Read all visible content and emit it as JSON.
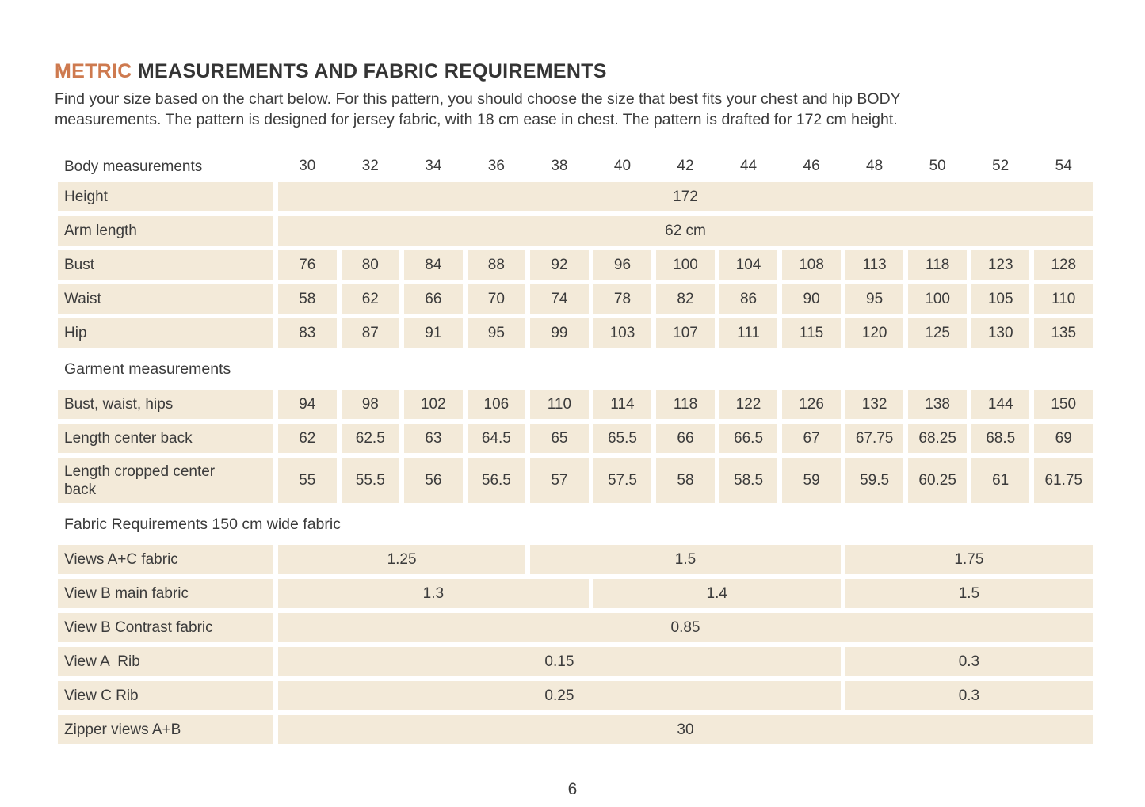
{
  "page": {
    "title_highlight": "METRIC",
    "title_rest": " MEASUREMENTS AND FABRIC REQUIREMENTS",
    "intro_line1": "Find your size based on the chart below. For this pattern, you should choose the size that best fits your chest and hip BODY",
    "intro_line2": "measurements. The pattern is designed for jersey fabric, with 18 cm ease in chest. The pattern is drafted for 172 cm height.",
    "page_number": "6"
  },
  "colors": {
    "accent": "#ce7a4f",
    "cell_background": "#f3ead9",
    "text": "#3b3b3b",
    "page_background": "#ffffff"
  },
  "table": {
    "rows": [
      {
        "type": "header",
        "label": "Body measurements",
        "sizes": [
          "30",
          "32",
          "34",
          "36",
          "38",
          "40",
          "42",
          "44",
          "46",
          "48",
          "50",
          "52",
          "54"
        ]
      },
      {
        "type": "data",
        "label": "Height",
        "cells": [
          {
            "v": "172",
            "s": 13
          }
        ]
      },
      {
        "type": "data",
        "label": "Arm length",
        "cells": [
          {
            "v": "62 cm",
            "s": 13
          }
        ]
      },
      {
        "type": "data",
        "label": "Bust",
        "cells": [
          {
            "v": "76"
          },
          {
            "v": "80"
          },
          {
            "v": "84"
          },
          {
            "v": "88"
          },
          {
            "v": "92"
          },
          {
            "v": "96"
          },
          {
            "v": "100"
          },
          {
            "v": "104"
          },
          {
            "v": "108"
          },
          {
            "v": "113"
          },
          {
            "v": "118"
          },
          {
            "v": "123"
          },
          {
            "v": "128"
          }
        ]
      },
      {
        "type": "data",
        "label": "Waist",
        "cells": [
          {
            "v": "58"
          },
          {
            "v": "62"
          },
          {
            "v": "66"
          },
          {
            "v": "70"
          },
          {
            "v": "74"
          },
          {
            "v": "78"
          },
          {
            "v": "82"
          },
          {
            "v": "86"
          },
          {
            "v": "90"
          },
          {
            "v": "95"
          },
          {
            "v": "100"
          },
          {
            "v": "105"
          },
          {
            "v": "110"
          }
        ]
      },
      {
        "type": "data",
        "label": "Hip",
        "cells": [
          {
            "v": "83"
          },
          {
            "v": "87"
          },
          {
            "v": "91"
          },
          {
            "v": "95"
          },
          {
            "v": "99"
          },
          {
            "v": "103"
          },
          {
            "v": "107"
          },
          {
            "v": "111"
          },
          {
            "v": "115"
          },
          {
            "v": "120"
          },
          {
            "v": "125"
          },
          {
            "v": "130"
          },
          {
            "v": "135"
          }
        ]
      },
      {
        "type": "section",
        "label": "Garment measurements"
      },
      {
        "type": "data",
        "label": "Bust, waist, hips",
        "cells": [
          {
            "v": "94"
          },
          {
            "v": "98"
          },
          {
            "v": "102"
          },
          {
            "v": "106"
          },
          {
            "v": "110"
          },
          {
            "v": "114"
          },
          {
            "v": "118"
          },
          {
            "v": "122"
          },
          {
            "v": "126"
          },
          {
            "v": "132"
          },
          {
            "v": "138"
          },
          {
            "v": "144"
          },
          {
            "v": "150"
          }
        ]
      },
      {
        "type": "data",
        "label": "Length center back",
        "cells": [
          {
            "v": "62"
          },
          {
            "v": "62.5"
          },
          {
            "v": "63"
          },
          {
            "v": "64.5"
          },
          {
            "v": "65"
          },
          {
            "v": "65.5"
          },
          {
            "v": "66"
          },
          {
            "v": "66.5"
          },
          {
            "v": "67"
          },
          {
            "v": "67.75"
          },
          {
            "v": "68.25"
          },
          {
            "v": "68.5"
          },
          {
            "v": "69"
          }
        ]
      },
      {
        "type": "data",
        "tall": true,
        "label": "Length cropped center\nback",
        "cells": [
          {
            "v": "55"
          },
          {
            "v": "55.5"
          },
          {
            "v": "56"
          },
          {
            "v": "56.5"
          },
          {
            "v": "57"
          },
          {
            "v": "57.5"
          },
          {
            "v": "58"
          },
          {
            "v": "58.5"
          },
          {
            "v": "59"
          },
          {
            "v": "59.5"
          },
          {
            "v": "60.25"
          },
          {
            "v": "61"
          },
          {
            "v": "61.75"
          }
        ]
      },
      {
        "type": "section",
        "label": "Fabric Requirements 150 cm wide fabric"
      },
      {
        "type": "data",
        "label": "Views A+C fabric",
        "cells": [
          {
            "v": "1.25",
            "s": 4
          },
          {
            "v": "1.5",
            "s": 5
          },
          {
            "v": "1.75",
            "s": 4
          }
        ]
      },
      {
        "type": "data",
        "label": "View B main fabric",
        "cells": [
          {
            "v": "1.3",
            "s": 5
          },
          {
            "v": "1.4",
            "s": 4
          },
          {
            "v": "1.5",
            "s": 4
          }
        ]
      },
      {
        "type": "data",
        "label": "View B Contrast fabric",
        "cells": [
          {
            "v": "0.85",
            "s": 13
          }
        ]
      },
      {
        "type": "data",
        "label": "View A  Rib",
        "cells": [
          {
            "v": "0.15",
            "s": 9
          },
          {
            "v": "0.3",
            "s": 4
          }
        ]
      },
      {
        "type": "data",
        "label": "View C Rib",
        "cells": [
          {
            "v": "0.25",
            "s": 9
          },
          {
            "v": "0.3",
            "s": 4
          }
        ]
      },
      {
        "type": "data",
        "label": "Zipper views A+B",
        "cells": [
          {
            "v": "30",
            "s": 13
          }
        ]
      }
    ]
  }
}
